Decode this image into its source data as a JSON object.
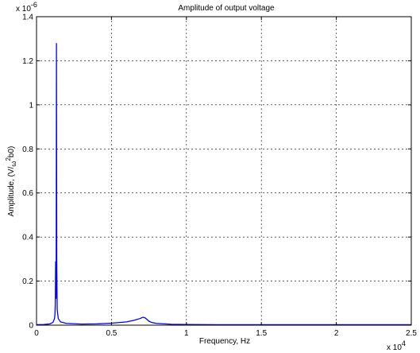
{
  "chart_data": {
    "type": "line",
    "title": "Amplitude of output voltage",
    "xlabel": "Frequency, Hz",
    "ylabel": "Amplitude, (V/ω²b0)",
    "ylabel_parts": [
      "Amplitude, (V/",
      "ω",
      "2",
      "b0)"
    ],
    "xlim": [
      0,
      25000
    ],
    "ylim": [
      0,
      1.4e-06
    ],
    "x_ticks": [
      0,
      0.5,
      1,
      1.5,
      2,
      2.5
    ],
    "x_tick_labels": [
      "0",
      "0.5",
      "1",
      "1.5",
      "2",
      "2.5"
    ],
    "x_exponent": {
      "base": "x 10",
      "power": "4"
    },
    "y_ticks": [
      0,
      0.2,
      0.4,
      0.6,
      0.8,
      1,
      1.2,
      1.4
    ],
    "y_tick_labels": [
      "0",
      "0.2",
      "0.4",
      "0.6",
      "0.8",
      "1",
      "1.2",
      "1.4"
    ],
    "y_exponent": {
      "base": "x 10",
      "power": "-6"
    },
    "grid": true,
    "grid_style": "dotted",
    "line_color": "#0000ff",
    "series": [
      {
        "x": [
          0,
          500,
          900,
          1100,
          1200,
          1230,
          1250,
          1260,
          1265,
          1270,
          1275,
          1280,
          1285,
          1290,
          1300,
          1310,
          1320,
          1330,
          1340,
          1350,
          1380,
          1450,
          1600,
          2000,
          3000,
          4000,
          5000,
          6000,
          6500,
          6900,
          7100,
          7250,
          7350,
          7500,
          7700,
          8000,
          9000,
          10000,
          12000,
          15000,
          18000,
          20000,
          22000,
          25000
        ],
        "y": [
          2e-09,
          3e-09,
          6e-09,
          1.3e-08,
          3e-08,
          5e-08,
          9e-08,
          1.4e-07,
          1.9e-07,
          2.5e-07,
          2.9e-07,
          2.8e-07,
          2e-07,
          1.4e-07,
          1.2e-07,
          2e-07,
          6e-07,
          1.28e-06,
          8e-07,
          3e-07,
          7e-08,
          3e-08,
          1.5e-08,
          8e-09,
          5e-09,
          6e-09,
          9e-09,
          1.5e-08,
          2.2e-08,
          3e-08,
          3.6e-08,
          3.3e-08,
          2.7e-08,
          1.8e-08,
          1.2e-08,
          8e-09,
          4e-09,
          3e-09,
          2e-09,
          2e-09,
          2e-09,
          2e-09,
          2e-09,
          2e-09
        ]
      }
    ]
  }
}
